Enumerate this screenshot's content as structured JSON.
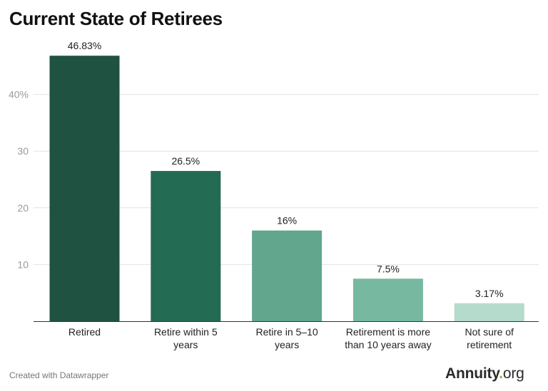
{
  "title": "Current State of Retirees",
  "footer": "Created with Datawrapper",
  "logo": {
    "name": "Annuity",
    "dot": ".",
    "suffix": "org",
    "accent": "#7bc043"
  },
  "chart_data": {
    "type": "bar",
    "title": "Current State of Retirees",
    "categories": [
      [
        "Retired"
      ],
      [
        "Retire within 5",
        "years"
      ],
      [
        "Retire in 5–10",
        "years"
      ],
      [
        "Retirement is more",
        "than 10 years away"
      ],
      [
        "Not sure of",
        "retirement"
      ]
    ],
    "values": [
      46.83,
      26.5,
      16,
      7.5,
      3.17
    ],
    "value_labels": [
      "46.83%",
      "26.5%",
      "16%",
      "7.5%",
      "3.17%"
    ],
    "colors": [
      "#1f5240",
      "#246b53",
      "#62a68d",
      "#77b8a0",
      "#b4dbcc"
    ],
    "yticks": [
      10,
      20,
      30,
      40
    ],
    "ytick_labels": [
      "10",
      "20",
      "30",
      "40%"
    ],
    "ylim": [
      0,
      50
    ],
    "grid": true,
    "xlabel": "",
    "ylabel": ""
  }
}
